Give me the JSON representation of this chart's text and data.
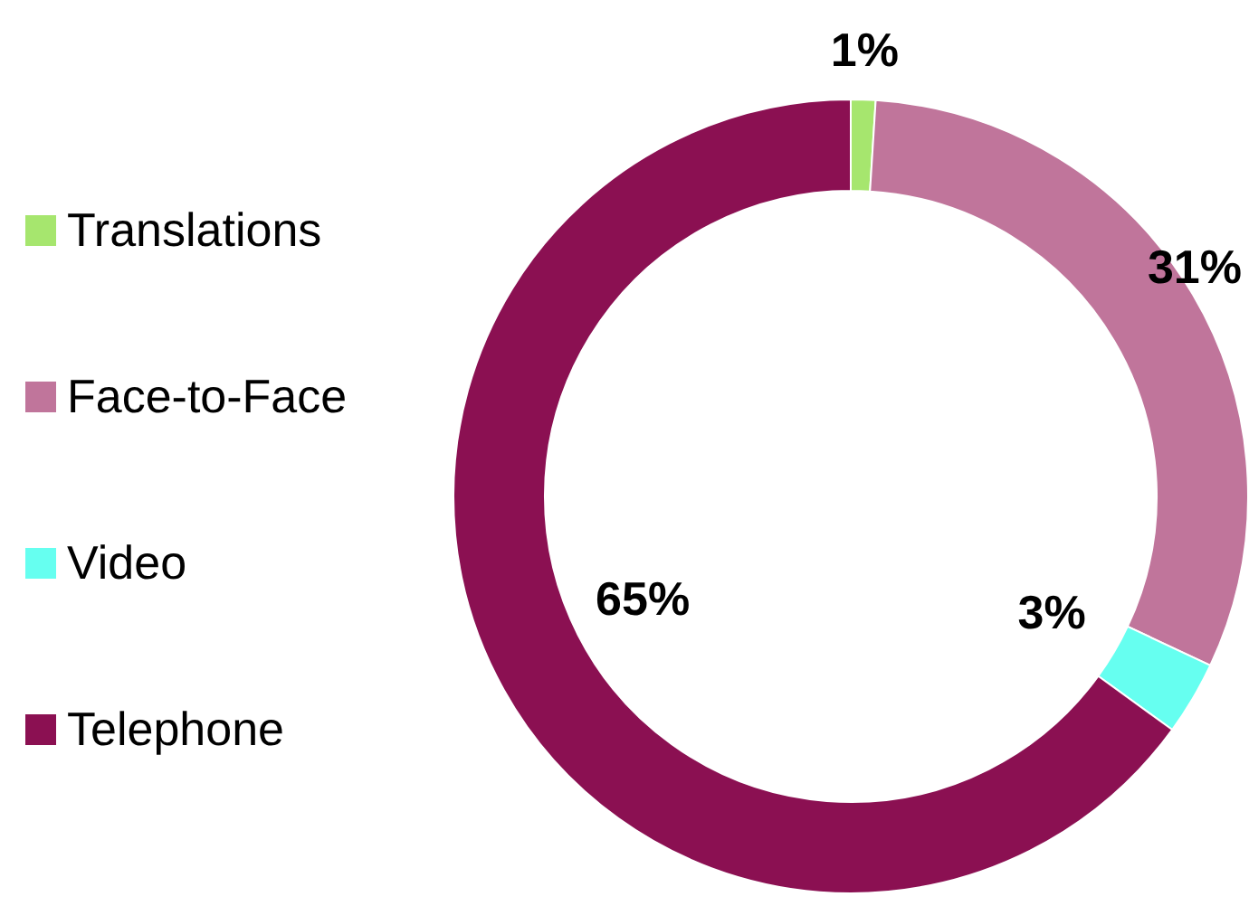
{
  "chart_data": {
    "type": "donut",
    "categories": [
      "Translations",
      "Face-to-Face",
      "Video",
      "Telephone"
    ],
    "values": [
      1,
      31,
      3,
      65
    ],
    "colors": [
      "#a6e66e",
      "#c0759b",
      "#66fff0",
      "#8b1052"
    ],
    "value_labels": [
      "1%",
      "31%",
      "3%",
      "65%"
    ],
    "legend": "left"
  }
}
